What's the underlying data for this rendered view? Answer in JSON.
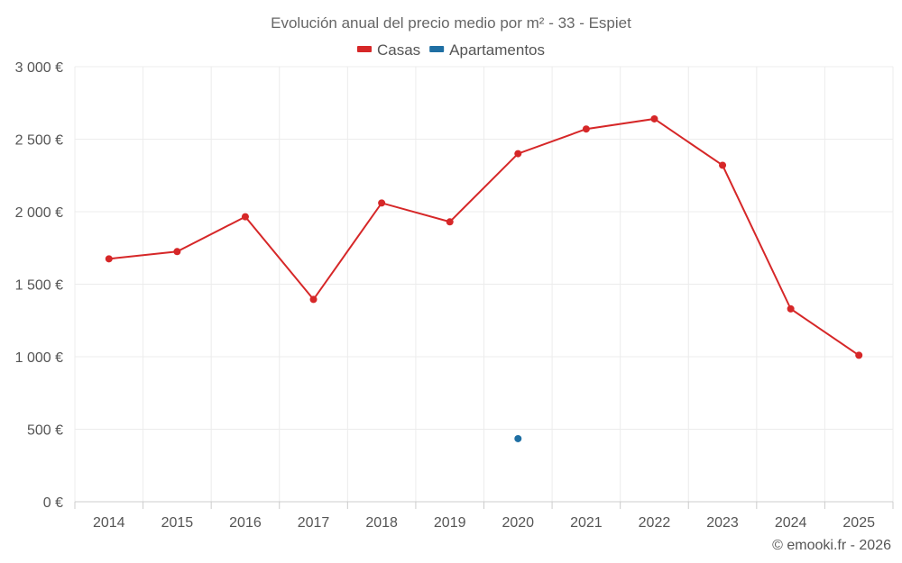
{
  "chart_data": {
    "type": "line",
    "title": "Evolución anual del precio medio por m² - 33 - Espiet",
    "categories": [
      "2014",
      "2015",
      "2016",
      "2017",
      "2018",
      "2019",
      "2020",
      "2021",
      "2022",
      "2023",
      "2024",
      "2025"
    ],
    "series": [
      {
        "name": "Casas",
        "color": "#d62728",
        "values": [
          1675,
          1725,
          1965,
          1395,
          2060,
          1930,
          2400,
          2570,
          2640,
          2320,
          1330,
          1010
        ]
      },
      {
        "name": "Apartamentos",
        "color": "#1f6fa3",
        "values": [
          null,
          null,
          null,
          null,
          null,
          null,
          435,
          null,
          null,
          null,
          null,
          null
        ]
      }
    ],
    "ylim": [
      0,
      3000
    ],
    "yticks": [
      0,
      500,
      1000,
      1500,
      2000,
      2500,
      3000
    ],
    "ytick_labels": [
      "0 €",
      "500 €",
      "1 000 €",
      "1 500 €",
      "2 000 €",
      "2 500 €",
      "3 000 €"
    ],
    "xlabel": "",
    "ylabel": "",
    "grid": true,
    "legend_position": "top-center"
  },
  "credit": "© emooki.fr - 2026"
}
